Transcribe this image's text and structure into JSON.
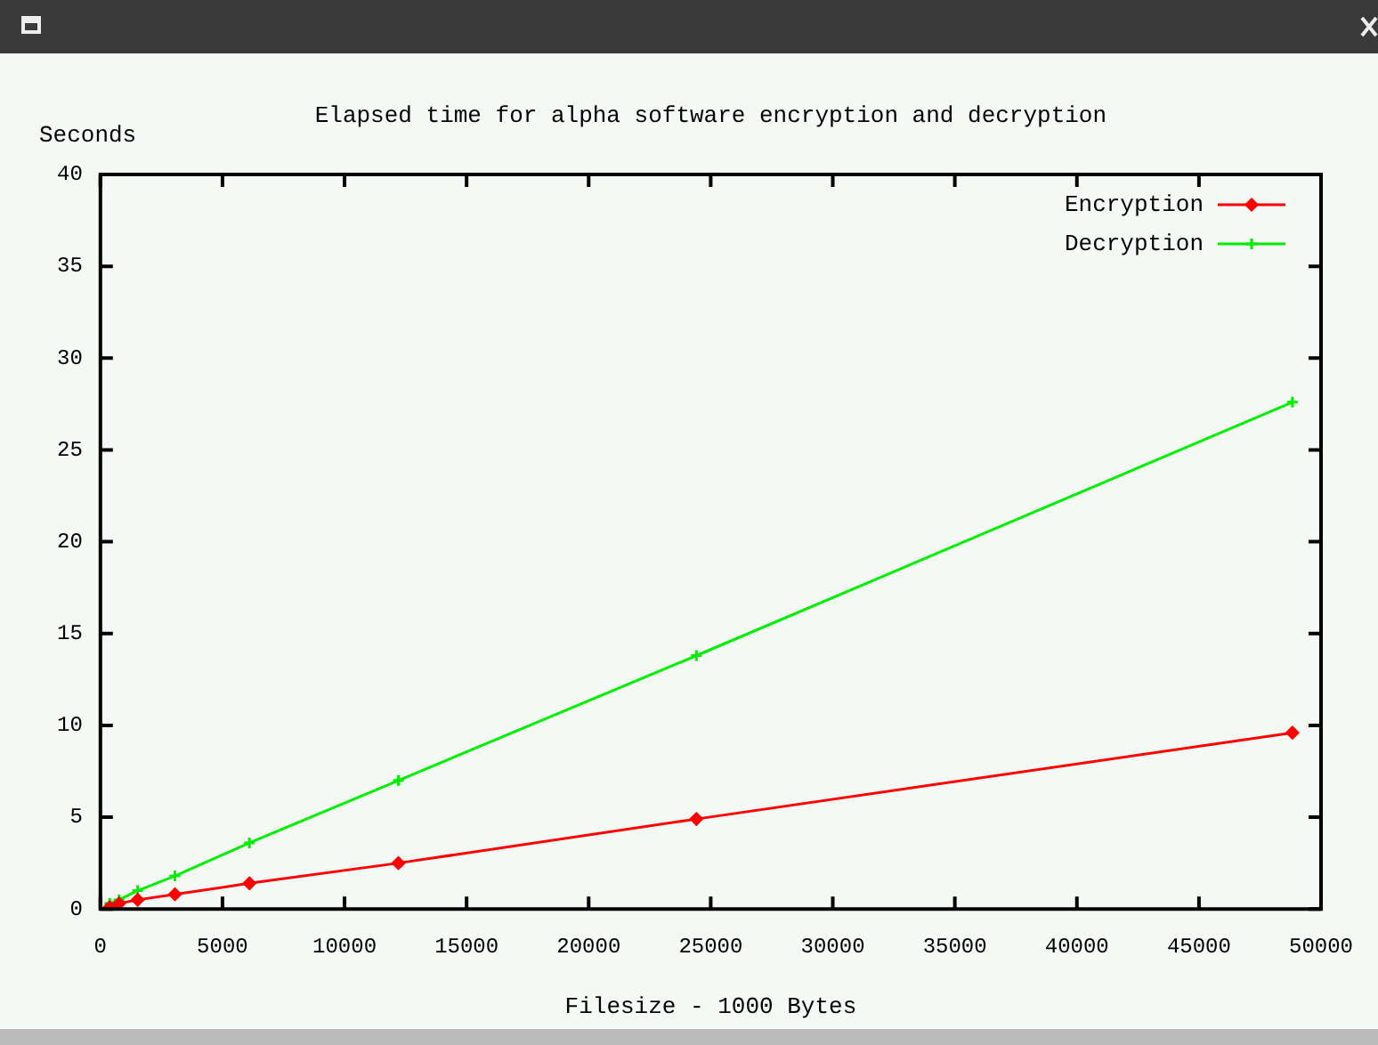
{
  "chart_data": {
    "type": "line",
    "title": "Elapsed time for alpha software encryption and decryption",
    "xlabel": "Filesize - 1000 Bytes",
    "ylabel": "Seconds",
    "xlim": [
      0,
      50000
    ],
    "xticks": [
      0,
      5000,
      10000,
      15000,
      20000,
      25000,
      30000,
      35000,
      40000,
      45000,
      50000
    ],
    "ylim": [
      0,
      40
    ],
    "yticks": [
      0,
      5,
      10,
      15,
      20,
      25,
      30,
      35,
      40
    ],
    "grid": false,
    "legend": "top right",
    "line_style": "solid",
    "series": [
      {
        "name": "Encryption",
        "color": "#ff0000",
        "marker": "diamond",
        "x": [
          381,
          763,
          1526,
          3052,
          6104,
          12207,
          24414,
          48828
        ],
        "values": [
          0.1,
          0.3,
          0.5,
          0.8,
          1.4,
          2.5,
          4.9,
          9.6
        ]
      },
      {
        "name": "Decryption",
        "color": "#00ee00",
        "marker": "cross",
        "x": [
          381,
          763,
          1526,
          3052,
          6104,
          12207,
          24414,
          48828
        ],
        "values": [
          0.3,
          0.5,
          1.0,
          1.8,
          3.6,
          7.0,
          13.8,
          27.6
        ]
      }
    ]
  }
}
